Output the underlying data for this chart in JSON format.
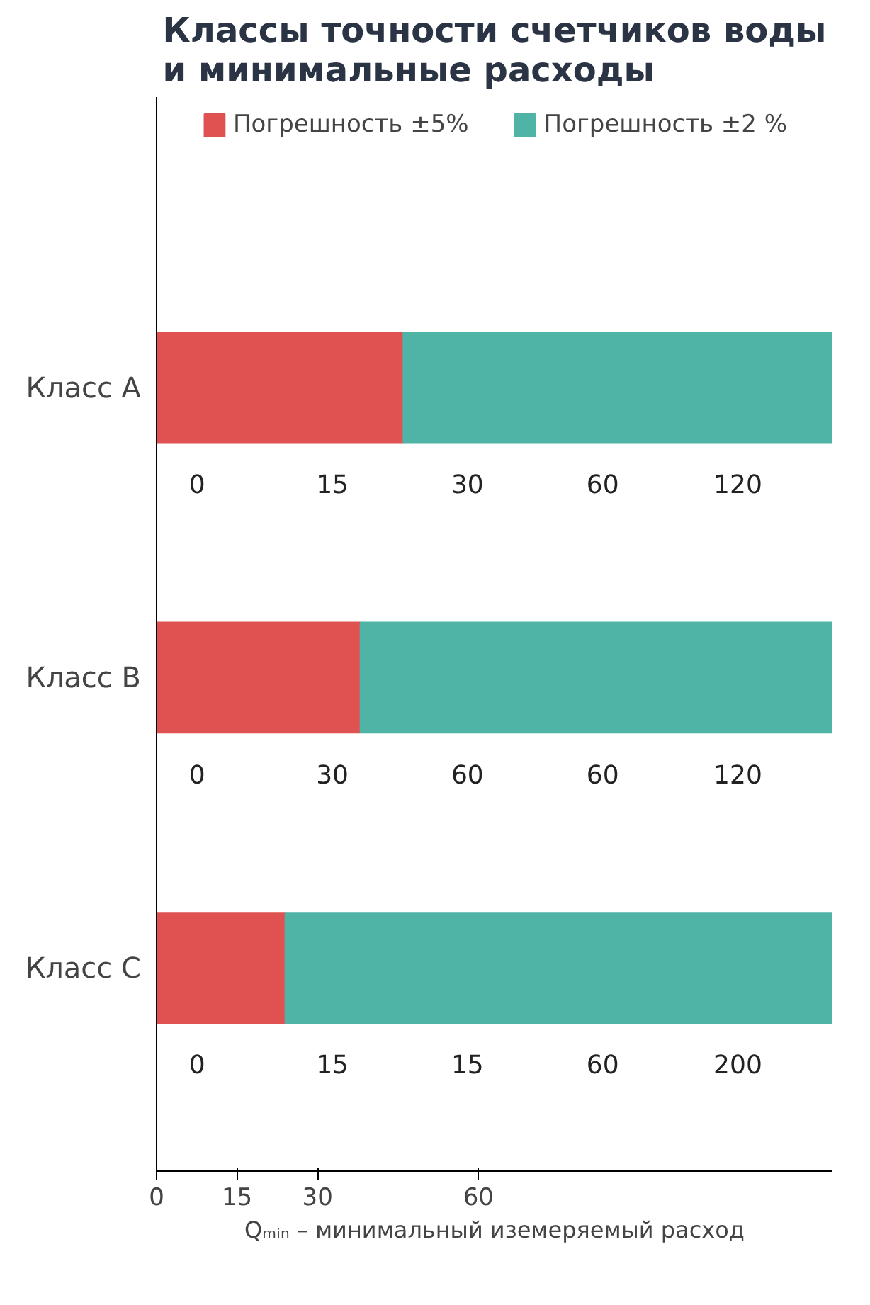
{
  "chart_data": {
    "type": "bar",
    "orientation": "horizontal",
    "stacked": true,
    "title": "Классы точности счетчиков воды и минимальные расходы",
    "xlabel": "Qₘᵢₙ – минимальный иземеряемый расход",
    "categories": [
      "Класс A",
      "Класс B",
      "Класс C"
    ],
    "series": [
      {
        "name": "Погрешность ±5%",
        "color": "#e05252",
        "values": [
          46,
          38,
          24
        ]
      },
      {
        "name": "Погрешность ±2 %",
        "color": "#4fb3a5",
        "values": [
          80,
          88,
          102
        ]
      }
    ],
    "xlim": [
      0,
      126
    ],
    "xticks": [
      0,
      15,
      30,
      60
    ],
    "legend": "top",
    "grid": false,
    "annotations": [
      "0",
      "15",
      "30",
      "60",
      "120",
      "0",
      "30",
      "60",
      "60",
      "120",
      "0",
      "15",
      "15",
      "60",
      "200"
    ]
  }
}
